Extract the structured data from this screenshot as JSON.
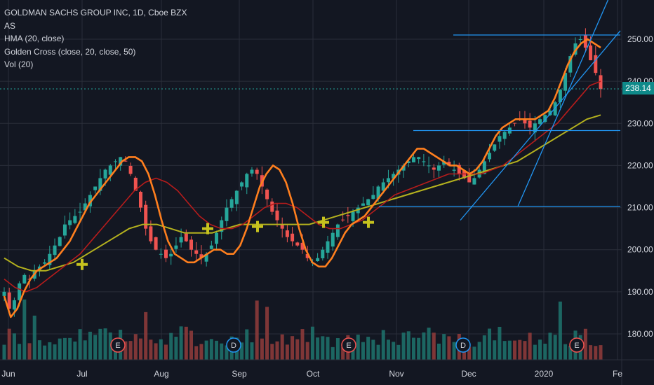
{
  "legend": {
    "title": "GOLDMAN SACHS GROUP INC, 1D, Cboe BZX",
    "line2": "AS",
    "line3": "HMA (20, close)",
    "line4": "Golden Cross (close, 20, close, 50)",
    "line5": "Vol (20)"
  },
  "last_price": "238.14",
  "colors": {
    "background": "#131722",
    "grid": "#2a2e39",
    "up": "#26a69a",
    "down": "#ef5350",
    "hma": "#ff7f1e",
    "ma20": "#b71c1c",
    "ma50": "#b5b21e",
    "trendline": "#2196f3",
    "cross_marker": "#c6c21e",
    "price_tag": "#0f8a8a"
  },
  "chart_data": {
    "type": "candlestick",
    "title": "GOLDMAN SACHS GROUP INC, 1D, Cboe BZX",
    "x_ticks": [
      "Jun",
      "Jul",
      "Aug",
      "Sep",
      "Oct",
      "Nov",
      "Dec",
      "2020",
      "Fe"
    ],
    "y_ticks": [
      "180.00",
      "190.00",
      "200.00",
      "210.00",
      "220.00",
      "230.00",
      "240.00",
      "250.00"
    ],
    "ylim": [
      175,
      258
    ],
    "grid": true,
    "close_series": [
      190,
      186,
      188,
      192,
      194,
      193,
      195,
      196,
      197,
      199,
      201,
      203,
      206,
      207,
      208,
      209,
      211,
      213,
      215,
      217,
      219,
      220,
      221,
      222,
      221,
      218,
      214,
      210,
      205,
      202,
      200,
      199,
      198,
      199,
      201,
      203,
      202,
      200,
      199,
      198,
      199,
      201,
      204,
      207,
      210,
      212,
      214,
      216,
      218,
      219,
      218,
      215,
      212,
      209,
      207,
      205,
      203,
      202,
      201,
      200,
      198,
      197,
      198,
      200,
      202,
      204,
      206,
      207,
      208,
      209,
      210,
      211,
      212,
      213,
      215,
      216,
      217,
      218,
      219,
      220,
      221,
      222,
      222,
      221,
      220,
      219,
      220,
      221,
      220,
      219,
      218,
      217,
      216,
      217,
      219,
      221,
      223,
      225,
      227,
      228,
      229,
      230,
      231,
      230,
      229,
      230,
      231,
      232,
      233,
      235,
      238,
      242,
      246,
      249,
      250,
      248,
      245,
      242,
      238.14
    ],
    "hma_series": [
      189,
      184,
      186,
      190,
      193,
      195,
      196,
      197,
      198,
      200,
      202,
      205,
      208,
      211,
      213,
      215,
      217,
      219,
      221,
      222,
      222,
      221,
      218,
      213,
      207,
      202,
      199,
      198,
      197,
      197,
      198,
      199,
      200,
      200,
      199,
      199,
      201,
      205,
      210,
      215,
      218,
      220,
      219,
      216,
      211,
      205,
      200,
      197,
      196,
      196,
      198,
      201,
      204,
      206,
      207,
      208,
      210,
      212,
      214,
      216,
      218,
      220,
      222,
      224,
      224,
      223,
      222,
      221,
      220,
      220,
      219,
      218,
      219,
      221,
      224,
      227,
      229,
      230,
      231,
      231,
      231,
      231,
      232,
      233,
      236,
      240,
      244,
      247,
      249,
      250,
      249,
      248
    ],
    "ma20_series": [
      193,
      191,
      190,
      191,
      193,
      195,
      197,
      199,
      202,
      205,
      208,
      211,
      214,
      216,
      217,
      216,
      214,
      211,
      208,
      206,
      205,
      205,
      206,
      208,
      210,
      211,
      211,
      210,
      208,
      206,
      205,
      205,
      206,
      207,
      209,
      211,
      213,
      214,
      215,
      216,
      217,
      218,
      218,
      218,
      218,
      219,
      220,
      222,
      224,
      226,
      228,
      230,
      233,
      236,
      239,
      240
    ],
    "ma50_series": [
      198,
      196,
      195,
      195,
      196,
      197,
      199,
      201,
      203,
      205,
      206,
      206,
      205,
      204,
      204,
      204,
      205,
      206,
      206,
      206,
      206,
      206,
      206,
      207,
      208,
      209,
      210,
      211,
      212,
      213,
      214,
      215,
      216,
      217,
      218,
      219,
      220,
      221,
      223,
      225,
      227,
      229,
      231,
      232
    ],
    "golden_cross_points": [
      {
        "x": "Jul",
        "y": 196.5
      },
      {
        "x": "Aug",
        "y": 205
      },
      {
        "x": "Sep",
        "y": 205.5
      },
      {
        "x": "Oct",
        "y": 206.5
      },
      {
        "x": "Oct",
        "y": 206.5
      }
    ],
    "horizontal_levels": [
      251,
      228.3,
      210.3
    ],
    "volume_events": [
      "E",
      "D",
      "E",
      "D",
      "E"
    ]
  }
}
